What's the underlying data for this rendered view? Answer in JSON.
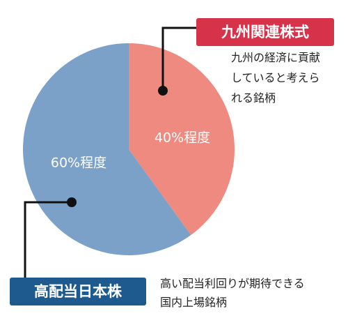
{
  "chart_data": {
    "type": "pie",
    "slices": [
      {
        "label": "九州関連株式",
        "value": 40,
        "value_label": "40%程度",
        "color": "#ef8a80",
        "description": [
          "九州の経済に貢献",
          "していると考えら",
          "れる銘柄"
        ],
        "badge_color": "#d6334a"
      },
      {
        "label": "高配当日本株",
        "value": 60,
        "value_label": "60%程度",
        "color": "#7ba1c9",
        "description": [
          "高い配当利回りが期待できる",
          "国内上場銘柄"
        ],
        "badge_color": "#1f5a8e"
      }
    ],
    "start_angle": "top",
    "direction": "clockwise"
  },
  "colors": {
    "leader_line": "#111111",
    "slice_label_text": "#ffffff"
  }
}
